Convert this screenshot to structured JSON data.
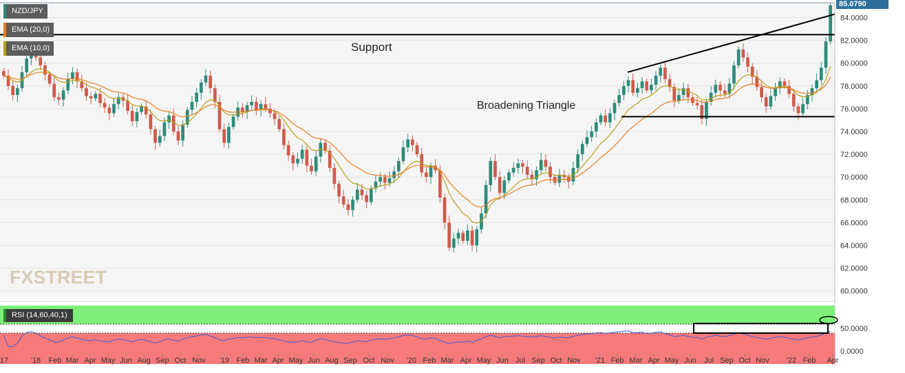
{
  "chart_data": {
    "type": "candlestick",
    "symbol": "NZD/JPY",
    "last_price": "85.0790",
    "indicators": [
      "EMA (20,0)",
      "EMA (10,0)"
    ],
    "rsi_label": "RSI (14,60,40,1)",
    "annotations": {
      "support": "Support",
      "triangle": "Broadening Triangle"
    },
    "watermark": "FXSTREET",
    "y_ticks": [
      "84.0000",
      "82.0000",
      "80.0000",
      "78.0000",
      "76.0000",
      "74.0000",
      "72.0000",
      "70.0000",
      "68.0000",
      "66.0000",
      "64.0000",
      "62.0000",
      "60.0000"
    ],
    "rsi_ticks": [
      "50.0000",
      "0.0000"
    ],
    "x_labels": [
      "'17",
      "'18",
      "Feb",
      "Mar",
      "Apr",
      "May",
      "Jun",
      "Aug",
      "Sep",
      "Oct",
      "Nov",
      "'19",
      "Feb",
      "Mar",
      "Apr",
      "May",
      "Jun",
      "Aug",
      "Sep",
      "Oct",
      "Nov",
      "'20",
      "Feb",
      "Mar",
      "Apr",
      "May",
      "Jun",
      "Jul",
      "Sep",
      "Oct",
      "Nov",
      "'21",
      "Feb",
      "Mar",
      "Apr",
      "May",
      "Jun",
      "Jul",
      "Sep",
      "Oct",
      "Nov",
      "'22",
      "Feb",
      "Apr"
    ],
    "ylim": [
      59.5,
      85.3
    ],
    "weekly_close": [
      78.9,
      78.0,
      77.2,
      77.8,
      79.2,
      80.4,
      80.9,
      80.5,
      79.8,
      79.0,
      78.2,
      77.0,
      76.8,
      77.6,
      78.6,
      79.2,
      78.4,
      77.8,
      77.1,
      76.9,
      77.3,
      76.5,
      76.1,
      75.6,
      76.4,
      77.0,
      76.7,
      75.8,
      74.9,
      75.7,
      76.2,
      75.5,
      74.2,
      73.0,
      73.6,
      74.8,
      75.4,
      74.0,
      73.2,
      74.6,
      75.9,
      76.6,
      77.4,
      78.3,
      78.9,
      77.8,
      76.6,
      74.2,
      73.0,
      74.4,
      75.3,
      76.1,
      75.7,
      76.3,
      76.6,
      75.9,
      76.4,
      76.0,
      75.6,
      75.1,
      74.2,
      72.8,
      71.9,
      71.2,
      71.6,
      72.4,
      71.0,
      70.5,
      71.8,
      73.0,
      72.3,
      70.8,
      69.4,
      68.3,
      67.6,
      67.1,
      68.0,
      68.9,
      68.4,
      67.8,
      69.0,
      69.6,
      70.0,
      69.5,
      69.9,
      70.5,
      71.4,
      72.6,
      73.3,
      72.8,
      72.0,
      70.4,
      70.0,
      71.0,
      70.6,
      68.2,
      66.0,
      63.8,
      64.6,
      65.1,
      64.4,
      65.3,
      64.0,
      65.4,
      66.8,
      69.3,
      71.4,
      70.0,
      68.6,
      69.7,
      70.4,
      70.8,
      71.2,
      70.9,
      70.2,
      69.8,
      70.6,
      71.5,
      70.9,
      70.0,
      69.5,
      70.2,
      70.0,
      69.6,
      70.8,
      72.0,
      72.9,
      73.5,
      74.0,
      74.8,
      75.4,
      74.8,
      75.6,
      76.5,
      77.2,
      78.0,
      78.5,
      77.4,
      77.8,
      78.4,
      77.6,
      78.1,
      78.9,
      79.6,
      78.6,
      77.9,
      76.7,
      77.2,
      77.8,
      77.0,
      76.5,
      76.3,
      75.1,
      76.6,
      77.4,
      78.1,
      77.6,
      77.3,
      78.2,
      79.8,
      81.2,
      80.5,
      79.7,
      78.8,
      77.9,
      77.0,
      76.2,
      77.1,
      77.8,
      78.4,
      78.0,
      77.3,
      76.2,
      75.6,
      76.4,
      77.2,
      77.8,
      78.5,
      79.6,
      81.9,
      85.08
    ]
  },
  "colors": {
    "bull": "#2e8b7a",
    "bear": "#cf5a4a",
    "ema20": "#e87d22",
    "ema10": "#b7a118",
    "rsi_line": "#3c5ad6",
    "rsi_overbought": "#7ef07a",
    "rsi_oversold": "#f77a7a"
  }
}
